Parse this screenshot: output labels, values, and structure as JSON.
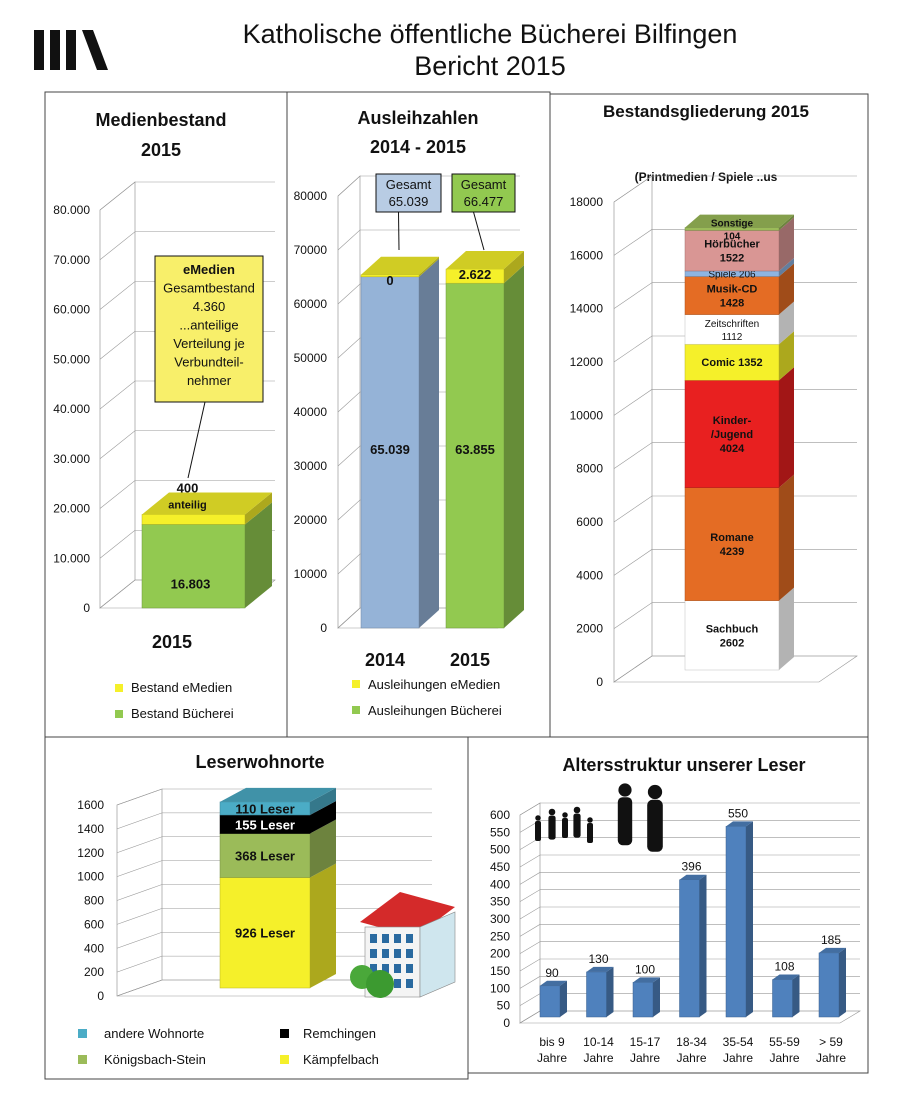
{
  "header": {
    "title_line1": "Katholische öffentliche Bücherei Bilfingen",
    "title_line2": "Bericht 2015"
  },
  "colors": {
    "green": "#92c950",
    "yellow": "#f5f02a",
    "blue": "#95b3d7",
    "orange": "#e46c24",
    "red": "#e82020",
    "pink": "#d99694",
    "lightblue": "#8db4e2",
    "sonstige": "#9bbb59",
    "white": "#ffffff",
    "cyan": "#4bacc6",
    "black": "#000000",
    "olivegreen": "#9bbb59",
    "barblue": "#4f81bd"
  },
  "chart_data": [
    {
      "type": "bar",
      "title": [
        "Medienbestand",
        "2015"
      ],
      "categories": [
        "2015"
      ],
      "series": [
        {
          "name": "Bestand Bücherei",
          "values": [
            16803
          ],
          "labels": [
            "16.803"
          ]
        },
        {
          "name": "Bestand eMedien",
          "values": [
            400
          ],
          "labels": [
            "400",
            "anteilig"
          ]
        }
      ],
      "ylim": [
        0,
        80000
      ],
      "yticks": [
        "0",
        "10.000",
        "20.000",
        "30.000",
        "40.000",
        "50.000",
        "60.000",
        "70.000",
        "80.000"
      ],
      "legend": [
        "Bestand eMedien",
        "Bestand Bücherei"
      ],
      "callout": [
        "eMedien",
        "Gesamtbestand",
        "4.360",
        "...anteilige",
        "Verteilung je",
        "Verbundteil-",
        "nehmer"
      ],
      "stacked": true
    },
    {
      "type": "bar",
      "title": [
        "Ausleihzahlen",
        "2014 - 2015"
      ],
      "categories": [
        "2014",
        "2015"
      ],
      "series": [
        {
          "name": "Ausleihungen Bücherei",
          "values": [
            65039,
            63855
          ],
          "labels": [
            "65.039",
            "63.855"
          ]
        },
        {
          "name": "Ausleihungen eMedien",
          "values": [
            0,
            2622
          ],
          "labels": [
            "0",
            "2.622"
          ]
        }
      ],
      "ylim": [
        0,
        80000
      ],
      "yticks": [
        "0",
        "10000",
        "20000",
        "30000",
        "40000",
        "50000",
        "60000",
        "70000",
        "80000"
      ],
      "legend": [
        "Ausleihungen eMedien",
        "Ausleihungen Bücherei"
      ],
      "callouts": [
        [
          "Gesamt",
          "65.039"
        ],
        [
          "Gesamt",
          "66.477"
        ]
      ],
      "stacked": true
    },
    {
      "type": "bar",
      "title": "Bestandsgliederung 2015",
      "subtitle": "(Printmedien / Spiele ..us",
      "categories": [
        "2015"
      ],
      "series": [
        {
          "name": "Sachbuch",
          "values": [
            2602
          ],
          "labels": [
            "Sachbuch",
            "2602"
          ]
        },
        {
          "name": "Romane",
          "values": [
            4239
          ],
          "labels": [
            "Romane",
            "4239"
          ]
        },
        {
          "name": "Kinder-/Jugend",
          "values": [
            4024
          ],
          "labels": [
            "Kinder-",
            "/Jugend",
            "4024"
          ]
        },
        {
          "name": "Comic",
          "values": [
            1352
          ],
          "labels": [
            "Comic 1352"
          ]
        },
        {
          "name": "Zeitschriften",
          "values": [
            1112
          ],
          "labels": [
            "Zeitschriften",
            "1112"
          ]
        },
        {
          "name": "Musik-CD",
          "values": [
            1428
          ],
          "labels": [
            "Musik-CD",
            "1428"
          ]
        },
        {
          "name": "Spiele",
          "values": [
            206
          ],
          "labels": [
            "Spiele 206"
          ]
        },
        {
          "name": "Hörbücher",
          "values": [
            1522
          ],
          "labels": [
            "Hörbücher",
            "1522"
          ]
        },
        {
          "name": "Sonstige",
          "values": [
            104
          ],
          "labels": [
            "Sonstige",
            "104"
          ]
        }
      ],
      "ylim": [
        0,
        18000
      ],
      "yticks": [
        "0",
        "2000",
        "4000",
        "6000",
        "8000",
        "10000",
        "12000",
        "14000",
        "16000",
        "18000"
      ],
      "stacked": true
    },
    {
      "type": "bar",
      "title": "Leserwohnorte",
      "series": [
        {
          "name": "Kämpfelbach",
          "values": [
            926
          ],
          "labels": [
            "926 Leser"
          ]
        },
        {
          "name": "Königsbach-Stein",
          "values": [
            368
          ],
          "labels": [
            "368 Leser"
          ]
        },
        {
          "name": "Remchingen",
          "values": [
            155
          ],
          "labels": [
            "155 Leser"
          ]
        },
        {
          "name": "andere Wohnorte",
          "values": [
            110
          ],
          "labels": [
            "110 Leser"
          ]
        }
      ],
      "ylim": [
        0,
        1600
      ],
      "yticks": [
        "0",
        "200",
        "400",
        "600",
        "800",
        "1000",
        "1200",
        "1400",
        "1600"
      ],
      "legend": [
        "andere Wohnorte",
        "Remchingen",
        "Königsbach-Stein",
        "Kämpfelbach"
      ],
      "stacked": true
    },
    {
      "type": "bar",
      "title": "Altersstruktur unserer Leser",
      "categories": [
        [
          "bis 9",
          "Jahre"
        ],
        [
          "10-14",
          "Jahre"
        ],
        [
          "15-17",
          "Jahre"
        ],
        [
          "18-34",
          "Jahre"
        ],
        [
          "35-54",
          "Jahre"
        ],
        [
          "55-59",
          "Jahre"
        ],
        [
          "> 59",
          "Jahre"
        ]
      ],
      "values": [
        90,
        130,
        100,
        396,
        550,
        108,
        185
      ],
      "labels": [
        "90",
        "130",
        "100",
        "396",
        "550",
        "108",
        "185"
      ],
      "ylim": [
        0,
        600
      ],
      "yticks": [
        "0",
        "50",
        "100",
        "150",
        "200",
        "250",
        "300",
        "350",
        "400",
        "450",
        "500",
        "550",
        "600"
      ]
    }
  ]
}
